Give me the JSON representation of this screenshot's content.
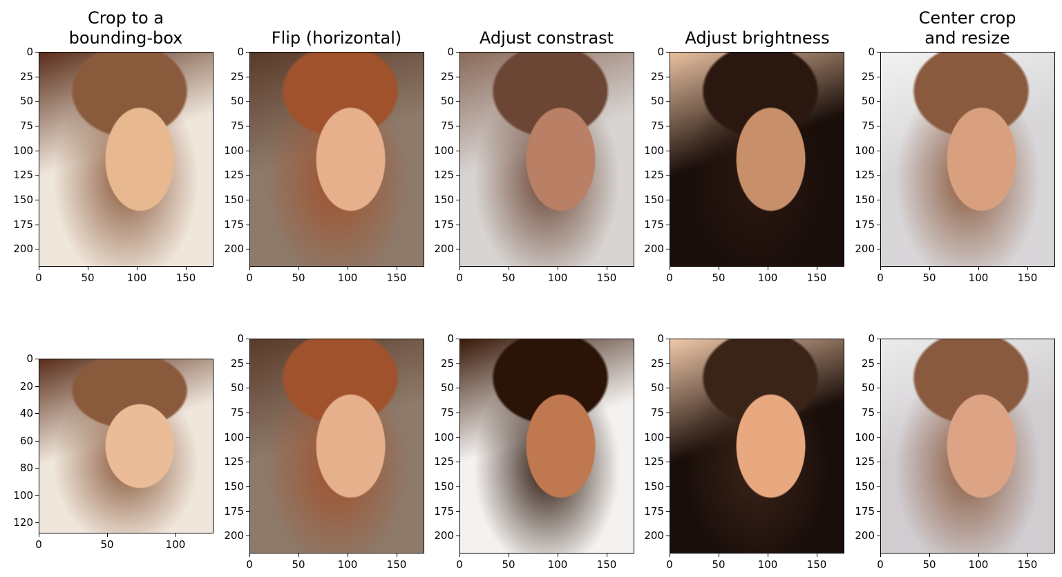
{
  "figure": {
    "columns": [
      {
        "title": "Crop to a\nbounding-box"
      },
      {
        "title": "Flip (horizontal)"
      },
      {
        "title": "Adjust constrast"
      },
      {
        "title": "Adjust brightness"
      },
      {
        "title": "Center crop\nand resize"
      }
    ],
    "panels": [
      {
        "name": "panel-crop-bbox-original",
        "subject": "long-brown-hair-woman-smiling",
        "colors": {
          "bg": "#f0e7dc",
          "hair": "#8a5a3c",
          "skin": "#e8b890",
          "accent": "#5a2e1a"
        },
        "yticks": [
          "0",
          "25",
          "50",
          "75",
          "100",
          "125",
          "150",
          "175",
          "200"
        ],
        "xticks": [
          "0",
          "50",
          "100",
          "150"
        ],
        "xlim": [
          0,
          178
        ],
        "ylim": [
          218,
          0
        ]
      },
      {
        "name": "panel-flip-original",
        "subject": "red-hair-woman-smiling",
        "colors": {
          "bg": "#8e7a6a",
          "hair": "#a0522d",
          "skin": "#e6b08c",
          "accent": "#5a3a2a"
        },
        "yticks": [
          "0",
          "25",
          "50",
          "75",
          "100",
          "125",
          "150",
          "175",
          "200"
        ],
        "xticks": [
          "0",
          "50",
          "100",
          "150"
        ],
        "xlim": [
          0,
          178
        ],
        "ylim": [
          218,
          0
        ]
      },
      {
        "name": "panel-contrast-original",
        "subject": "man-profile-talking",
        "colors": {
          "bg": "#d8d4d2",
          "hair": "#6b4634",
          "skin": "#b98066",
          "accent": "#8a6a5a"
        },
        "yticks": [
          "0",
          "25",
          "50",
          "75",
          "100",
          "125",
          "150",
          "175",
          "200"
        ],
        "xticks": [
          "0",
          "50",
          "100",
          "150"
        ],
        "xlim": [
          0,
          178
        ],
        "ylim": [
          218,
          0
        ]
      },
      {
        "name": "panel-brightness-original",
        "subject": "dark-hair-woman-looking-down",
        "colors": {
          "bg": "#1a0e0a",
          "hair": "#2a1810",
          "skin": "#c8906a",
          "accent": "#e8c0a0"
        },
        "yticks": [
          "0",
          "25",
          "50",
          "75",
          "100",
          "125",
          "150",
          "175",
          "200"
        ],
        "xticks": [
          "0",
          "50",
          "100",
          "150"
        ],
        "xlim": [
          0,
          178
        ],
        "ylim": [
          218,
          0
        ]
      },
      {
        "name": "panel-center-crop-original",
        "subject": "woman-with-updo-hair",
        "colors": {
          "bg": "#d8d6d8",
          "hair": "#8a5a3e",
          "skin": "#d9a080",
          "accent": "#f2f2f2"
        },
        "yticks": [
          "0",
          "25",
          "50",
          "75",
          "100",
          "125",
          "150",
          "175",
          "200"
        ],
        "xticks": [
          "0",
          "50",
          "100",
          "150"
        ],
        "xlim": [
          0,
          178
        ],
        "ylim": [
          218,
          0
        ]
      },
      {
        "name": "panel-crop-bbox-result",
        "subject": "long-brown-hair-woman-smiling-cropped",
        "colors": {
          "bg": "#f0e7dc",
          "hair": "#8a5a3c",
          "skin": "#ebbc98",
          "accent": "#5a2e1a"
        },
        "yticks": [
          "0",
          "20",
          "40",
          "60",
          "80",
          "100",
          "120"
        ],
        "xticks": [
          "0",
          "50",
          "100"
        ],
        "xlim": [
          0,
          128
        ],
        "ylim": [
          128,
          0
        ]
      },
      {
        "name": "panel-flip-result",
        "subject": "red-hair-woman-smiling-flipped",
        "colors": {
          "bg": "#8e7a6a",
          "hair": "#a0522d",
          "skin": "#e6b08c",
          "accent": "#5a3a2a"
        },
        "yticks": [
          "0",
          "25",
          "50",
          "75",
          "100",
          "125",
          "150",
          "175",
          "200"
        ],
        "xticks": [
          "0",
          "50",
          "100",
          "150"
        ],
        "xlim": [
          0,
          178
        ],
        "ylim": [
          218,
          0
        ]
      },
      {
        "name": "panel-contrast-result",
        "subject": "man-profile-talking-high-contrast",
        "colors": {
          "bg": "#f4f2f0",
          "hair": "#2a1408",
          "skin": "#c07850",
          "accent": "#3a1a0a"
        },
        "yticks": [
          "0",
          "25",
          "50",
          "75",
          "100",
          "125",
          "150",
          "175",
          "200"
        ],
        "xticks": [
          "0",
          "50",
          "100",
          "150"
        ],
        "xlim": [
          0,
          178
        ],
        "ylim": [
          218,
          0
        ]
      },
      {
        "name": "panel-brightness-result",
        "subject": "dark-hair-woman-looking-down-brighter",
        "colors": {
          "bg": "#1a0e0a",
          "hair": "#3a2418",
          "skin": "#e8a880",
          "accent": "#f0c8a8"
        },
        "yticks": [
          "0",
          "25",
          "50",
          "75",
          "100",
          "125",
          "150",
          "175",
          "200"
        ],
        "xticks": [
          "0",
          "50",
          "100",
          "150"
        ],
        "xlim": [
          0,
          178
        ],
        "ylim": [
          218,
          0
        ]
      },
      {
        "name": "panel-center-crop-result",
        "subject": "woman-with-updo-hair-zoomed",
        "colors": {
          "bg": "#d0ccd0",
          "hair": "#8a5a3e",
          "skin": "#dca484",
          "accent": "#ececec"
        },
        "yticks": [
          "0",
          "25",
          "50",
          "75",
          "100",
          "125",
          "150",
          "175",
          "200"
        ],
        "xticks": [
          "0",
          "50",
          "100",
          "150"
        ],
        "xlim": [
          0,
          178
        ],
        "ylim": [
          218,
          0
        ]
      }
    ]
  }
}
